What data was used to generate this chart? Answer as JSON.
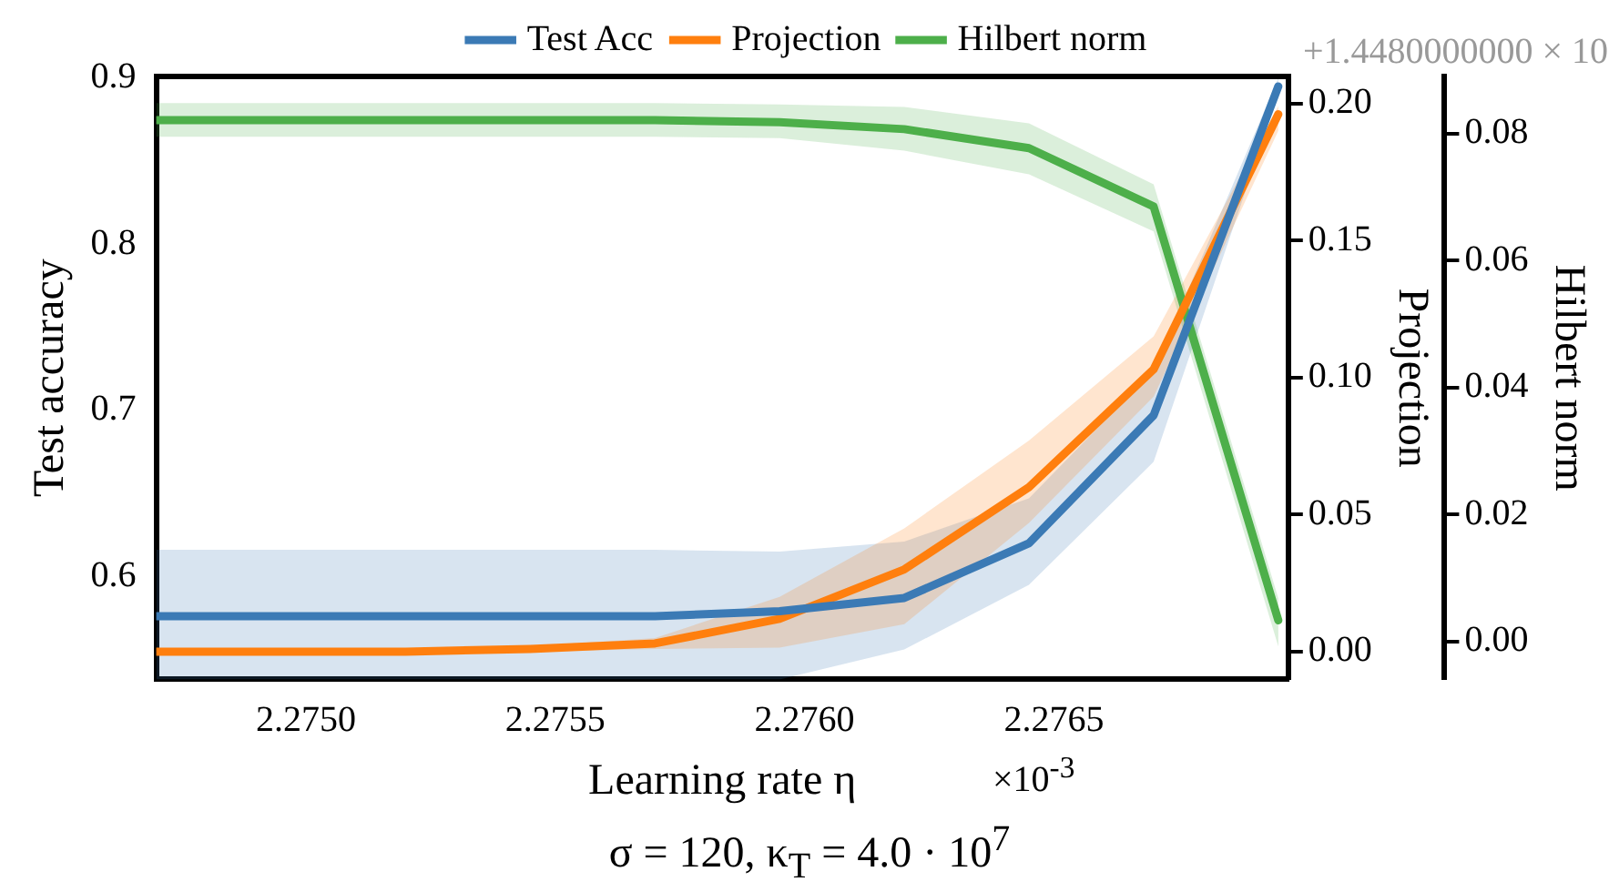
{
  "chart_data": {
    "type": "line",
    "title": "σ = 120, κ$_{T}$ = 4.0 · 10$^{7}$",
    "xlabel": "Learning rate η",
    "ylabel": "Test accuracy",
    "y2label": "Projection",
    "y3label": "Hilbert norm",
    "annotations": [
      "×10$^{-3}$",
      "+1.4480000000 × 10"
    ],
    "x": [
      2.2747,
      2.27495,
      2.2752,
      2.27545,
      2.2757,
      2.27595,
      2.2762,
      2.27645,
      2.2767,
      2.27695
    ],
    "series": [
      {
        "name": "Test Acc",
        "color": "#3b7ab5",
        "values": [
          0.576,
          0.576,
          0.576,
          0.576,
          0.576,
          0.579,
          0.587,
          0.62,
          0.697,
          0.895
        ],
        "lower": [
          0.538,
          0.538,
          0.538,
          0.538,
          0.538,
          0.538,
          0.556,
          0.595,
          0.669,
          0.89
        ],
        "upper": [
          0.616,
          0.616,
          0.616,
          0.616,
          0.616,
          0.615,
          0.621,
          0.647,
          0.724,
          0.9
        ]
      },
      {
        "name": "Projection",
        "color": "#ff7f0e",
        "axis": "y2",
        "values": [
          0.0,
          0.0,
          0.0,
          0.001,
          0.003,
          0.012,
          0.03,
          0.06,
          0.103,
          0.196
        ],
        "lower": [
          0.0,
          0.0,
          0.0,
          0.0,
          0.001,
          0.0015,
          0.01,
          0.047,
          0.093,
          0.19
        ],
        "upper": [
          0.001,
          0.001,
          0.001,
          0.002,
          0.005,
          0.02,
          0.045,
          0.077,
          0.115,
          0.199
        ]
      },
      {
        "name": "Hilbert norm",
        "color": "#4daf4a",
        "axis": "y3",
        "values": [
          0.0821,
          0.0821,
          0.0821,
          0.0821,
          0.0821,
          0.0818,
          0.0807,
          0.0777,
          0.0685,
          0.0033
        ],
        "lower": [
          0.0795,
          0.0795,
          0.0795,
          0.0795,
          0.0795,
          0.0793,
          0.0773,
          0.0736,
          0.0646,
          -0.0008
        ],
        "upper": [
          0.0848,
          0.0848,
          0.0848,
          0.0848,
          0.0848,
          0.0846,
          0.0842,
          0.0816,
          0.072,
          0.0068
        ]
      }
    ],
    "xlim": [
      2.2747,
      2.27697
    ],
    "xticks": [
      {
        "value": 2.275,
        "label": "2.2750"
      },
      {
        "value": 2.2755,
        "label": "2.2755"
      },
      {
        "value": 2.276,
        "label": "2.2760"
      },
      {
        "value": 2.2765,
        "label": "2.2765"
      }
    ],
    "ylim": [
      0.538,
      0.901
    ],
    "yticks": [
      0.6,
      0.7,
      0.8,
      0.9
    ],
    "y2lim": [
      -0.0101,
      0.2098
    ],
    "y2ticks": [
      {
        "value": 0,
        "label": "0.00"
      },
      {
        "value": 0.05,
        "label": "0.05"
      },
      {
        "value": 0.1,
        "label": "0.10"
      },
      {
        "value": 0.15,
        "label": "0.15"
      },
      {
        "value": 0.2,
        "label": "0.20"
      }
    ],
    "y3lim": [
      -0.006,
      0.089
    ],
    "y3ticks": [
      {
        "value": 0,
        "label": "0.00"
      },
      {
        "value": 0.02,
        "label": "0.02"
      },
      {
        "value": 0.04,
        "label": "0.04"
      },
      {
        "value": 0.06,
        "label": "0.06"
      },
      {
        "value": 0.08,
        "label": "0.08"
      }
    ],
    "grid": false,
    "legend": "top",
    "marker": "none",
    "line_style": "solid"
  }
}
